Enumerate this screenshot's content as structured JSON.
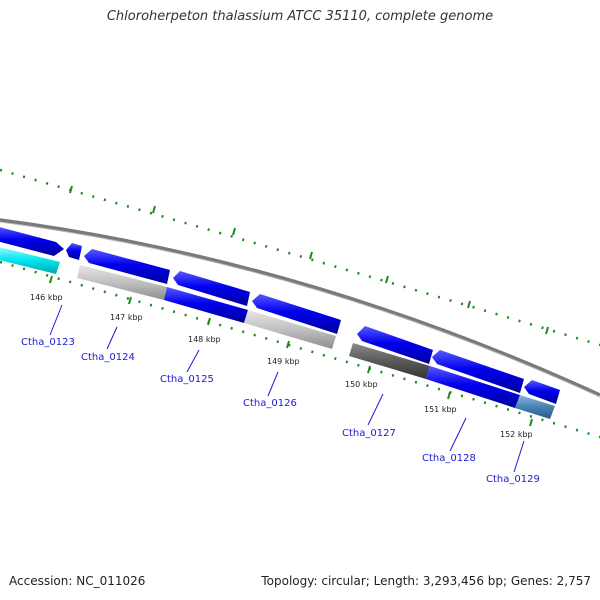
{
  "title": "Chloroherpeton thalassium ATCC 35110, complete genome",
  "footer": {
    "accession": "Accession: NC_011026",
    "topology": "Topology: circular; Length: 3,293,456 bp; Genes: 2,757"
  },
  "ticks": [
    {
      "label": "146 kbp"
    },
    {
      "label": "147 kbp"
    },
    {
      "label": "148 kbp"
    },
    {
      "label": "149 kbp"
    },
    {
      "label": "150 kbp"
    },
    {
      "label": "151 kbp"
    },
    {
      "label": "152 kbp"
    }
  ],
  "genes": [
    {
      "name": "Ctha_0123"
    },
    {
      "name": "Ctha_0124"
    },
    {
      "name": "Ctha_0125"
    },
    {
      "name": "Ctha_0126"
    },
    {
      "name": "Ctha_0127"
    },
    {
      "name": "Ctha_0128"
    },
    {
      "name": "Ctha_0129"
    }
  ],
  "colors": {
    "cds": "#0000ee",
    "gene_gray": "#b4b4b4",
    "gene_dark": "#555555",
    "gene_cyan": "#00e5ee",
    "gene_steel": "#4682b4",
    "backbone": "#808080",
    "ticks": "#1a8a1a",
    "labels": "#1a1ad6"
  }
}
